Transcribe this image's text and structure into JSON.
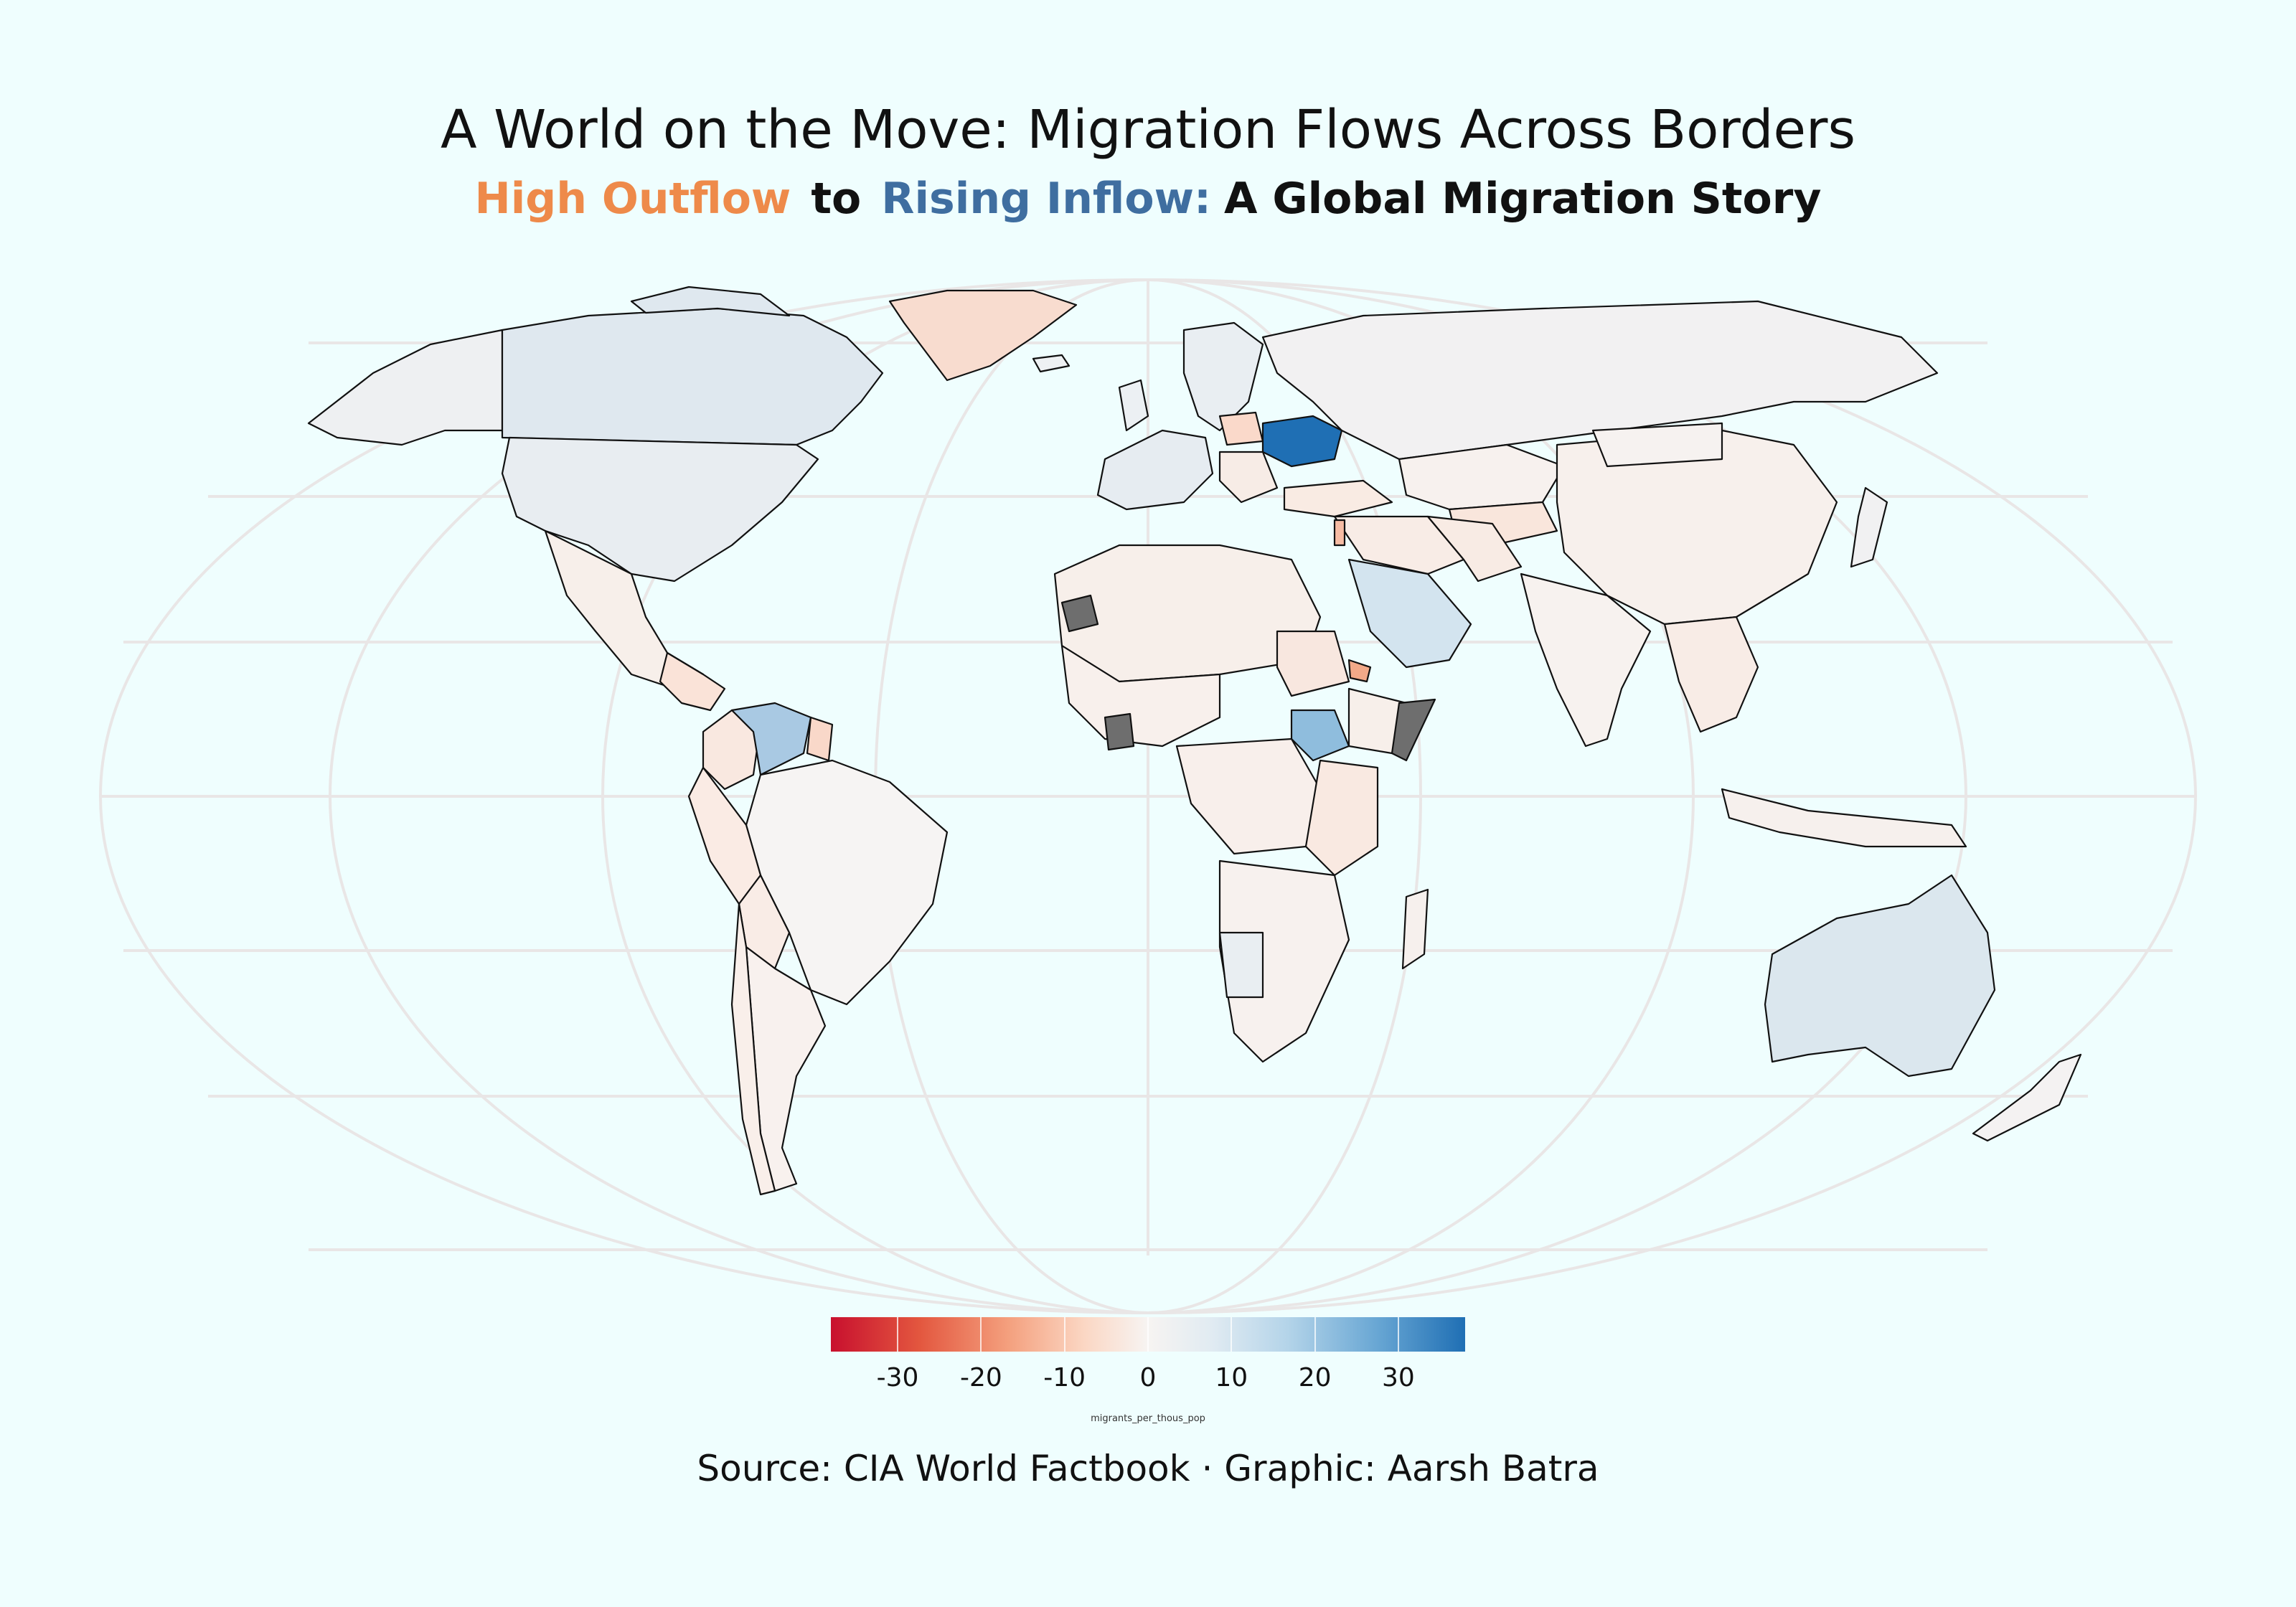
{
  "title": "A World on the Move: Migration Flows Across Borders",
  "subtitle": {
    "part1": "High Outflow",
    "part2": "to",
    "part3": "Rising Inflow:",
    "part4": "A Global Migration Story",
    "color_outflow": "#ee8a4a",
    "color_inflow": "#3f6ea0"
  },
  "legend": {
    "title": "migrants_per_thous_pop",
    "ticks": [
      "-30",
      "-20",
      "-10",
      "0",
      "10",
      "20",
      "30"
    ],
    "tick_values": [
      -30,
      -20,
      -10,
      0,
      10,
      20,
      30
    ],
    "range": [
      -38,
      38
    ],
    "colors": [
      "#c8102e",
      "#f4a07e",
      "#f7f4f2",
      "#b4d4e9",
      "#1f6fb4"
    ]
  },
  "source": "Source: CIA World Factbook · Graphic: Aarsh Batra",
  "chart_data": {
    "type": "choropleth",
    "projection": "Robinson",
    "value_label": "migrants_per_thous_pop",
    "value_range": [
      -38,
      38
    ],
    "missing_color": "#6e6e6e",
    "regions": [
      {
        "name": "Ukraine",
        "value": 37
      },
      {
        "name": "Venezuela",
        "value": 18
      },
      {
        "name": "South Sudan",
        "value": 20
      },
      {
        "name": "Saudi Arabia",
        "value": 10
      },
      {
        "name": "Canada",
        "value": 5
      },
      {
        "name": "United States",
        "value": 3
      },
      {
        "name": "Australia",
        "value": 6
      },
      {
        "name": "Greenland",
        "value": -8
      },
      {
        "name": "Poland",
        "value": -7
      },
      {
        "name": "Lebanon",
        "value": -10
      },
      {
        "name": "Eritrea",
        "value": -12
      },
      {
        "name": "Guyana",
        "value": -9
      },
      {
        "name": "Russia",
        "value": 1
      },
      {
        "name": "China",
        "value": 0
      },
      {
        "name": "India",
        "value": 0
      },
      {
        "name": "Brazil",
        "value": 0
      },
      {
        "name": "Western Sahara",
        "value": null
      },
      {
        "name": "Cote d'Ivoire",
        "value": null
      },
      {
        "name": "Somalia",
        "value": null
      }
    ]
  }
}
